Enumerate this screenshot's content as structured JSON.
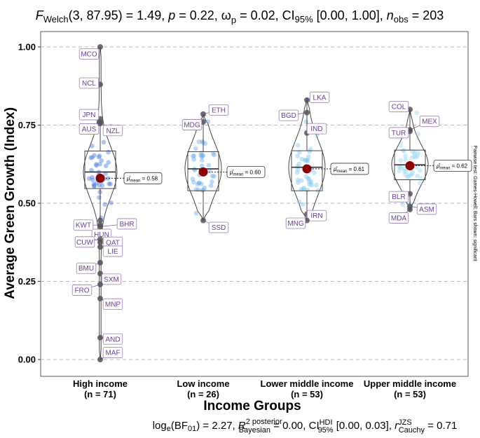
{
  "chart_data": {
    "type": "violin-box",
    "title_html": "<tspan font-style=\"italic\">F</tspan><tspan font-size=\"13\" dy=\"4\">Welch</tspan><tspan dy=\"-4\">(3, 87.95) = 1.49, </tspan><tspan font-style=\"italic\">p</tspan><tspan> = 0.22, ω</tspan><tspan font-size=\"13\" dy=\"5\">p</tspan><tspan dy=\"-5\"> = 0.02, CI</tspan><tspan font-size=\"13\" dy=\"4\">95%</tspan><tspan dy=\"-4\"> [0.00, 1.00], </tspan><tspan font-style=\"italic\">n</tspan><tspan font-size=\"13\" dy=\"4\">obs</tspan><tspan dy=\"-4\"> = 203</tspan>",
    "title_text": "F_Welch(3, 87.95) = 1.49, p = 0.22, ω²_p = 0.02, CI95% [0.00, 1.00], n_obs = 203",
    "caption_text": "log_e(BF_01) = 2.27, R²posterior_Bayesian = 0.00, CI^HDI_95% [0.00, 0.03], r^JZS_Cauchy = 0.71",
    "xlabel": "Income Groups",
    "ylabel": "Average Green Growth (Index)",
    "side_note": "Pairwise test: Games-Howell; Bars shown: significant",
    "ylim": [
      0,
      1
    ],
    "yticks": [
      0.0,
      0.25,
      0.5,
      0.75,
      1.0
    ],
    "ytick_labels": [
      "0.00",
      "0.25",
      "0.50",
      "0.75",
      "1.00"
    ],
    "groups": [
      {
        "name": "High income",
        "n_label": "(n = 71)",
        "color": "#4a7de0",
        "mean": 0.58,
        "mean_label": "= 0.58",
        "q1": 0.547,
        "median": 0.6,
        "q3": 0.667,
        "whisker_low": 0.447,
        "whisker_high": 0.765,
        "violin_min": 0.0,
        "violin_max": 1.0,
        "outliers": [
          {
            "y": 1.0,
            "label": "MCO"
          },
          {
            "y": 0.88,
            "label": "NCL"
          },
          {
            "y": 0.77,
            "label": "JPN"
          },
          {
            "y": 0.76,
            "label": "AUS"
          },
          {
            "y": 0.755,
            "label": "NZL"
          },
          {
            "y": 0.445,
            "label": "HUN"
          },
          {
            "y": 0.43,
            "label": "KWT"
          },
          {
            "y": 0.425,
            "label": "BHR"
          },
          {
            "y": 0.385,
            "label": "CUW"
          },
          {
            "y": 0.375,
            "label": "QAT"
          },
          {
            "y": 0.36,
            "label": "LIE"
          },
          {
            "y": 0.31,
            "label": "BMU"
          },
          {
            "y": 0.275,
            "label": "SXM"
          },
          {
            "y": 0.24,
            "label": "FRO"
          },
          {
            "y": 0.195,
            "label": "MNP"
          },
          {
            "y": 0.07,
            "label": "AND"
          },
          {
            "y": 0.0,
            "label": "MAF"
          }
        ]
      },
      {
        "name": "Low income",
        "n_label": "(n = 26)",
        "color": "#6aaeea",
        "mean": 0.6,
        "mean_label": "= 0.60",
        "q1": 0.54,
        "median": 0.61,
        "q3": 0.665,
        "whisker_low": 0.445,
        "whisker_high": 0.785,
        "violin_min": 0.445,
        "violin_max": 0.785,
        "outliers": [
          {
            "y": 0.785,
            "label": "ETH"
          },
          {
            "y": 0.76,
            "label": "MDG"
          },
          {
            "y": 0.445,
            "label": "SSD"
          }
        ]
      },
      {
        "name": "Lower middle income",
        "n_label": "(n = 53)",
        "color": "#7cc8f0",
        "mean": 0.61,
        "mean_label": "= 0.61",
        "q1": 0.54,
        "median": 0.615,
        "q3": 0.668,
        "whisker_low": 0.45,
        "whisker_high": 0.83,
        "violin_min": 0.445,
        "violin_max": 0.835,
        "outliers": [
          {
            "y": 0.83,
            "label": "LKA"
          },
          {
            "y": 0.79,
            "label": "BGD"
          },
          {
            "y": 0.725,
            "label": "IND"
          },
          {
            "y": 0.465,
            "label": "IRN"
          },
          {
            "y": 0.445,
            "label": "MNG"
          }
        ]
      },
      {
        "name": "Upper middle income",
        "n_label": "(n = 53)",
        "color": "#96d8f4",
        "mean": 0.62,
        "mean_label": "= 0.62",
        "q1": 0.575,
        "median": 0.623,
        "q3": 0.67,
        "whisker_low": 0.49,
        "whisker_high": 0.8,
        "violin_min": 0.475,
        "violin_max": 0.8,
        "outliers": [
          {
            "y": 0.8,
            "label": "COL"
          },
          {
            "y": 0.735,
            "label": "MEX"
          },
          {
            "y": 0.73,
            "label": "TUR"
          },
          {
            "y": 0.53,
            "label": "BLR"
          },
          {
            "y": 0.49,
            "label": "ASM"
          },
          {
            "y": 0.48,
            "label": "MDA"
          }
        ]
      }
    ]
  }
}
